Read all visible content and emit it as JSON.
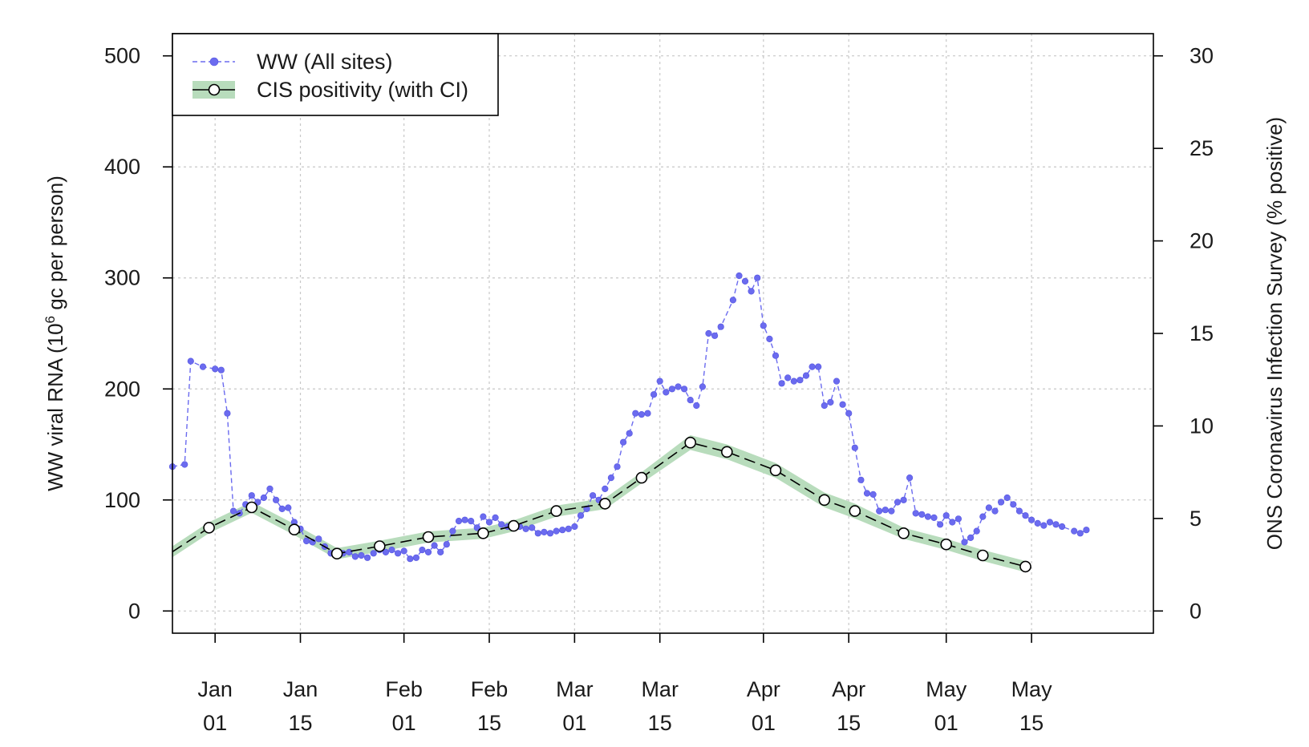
{
  "chart_data": {
    "type": "line",
    "x_axis": {
      "type": "date",
      "range": [
        "2020-12-25",
        "2021-06-04"
      ],
      "ticks": [
        {
          "date": "2021-01-01",
          "month": "Jan",
          "day": "01"
        },
        {
          "date": "2021-01-15",
          "month": "Jan",
          "day": "15"
        },
        {
          "date": "2021-02-01",
          "month": "Feb",
          "day": "01"
        },
        {
          "date": "2021-02-15",
          "month": "Feb",
          "day": "15"
        },
        {
          "date": "2021-03-01",
          "month": "Mar",
          "day": "01"
        },
        {
          "date": "2021-03-15",
          "month": "Mar",
          "day": "15"
        },
        {
          "date": "2021-04-01",
          "month": "Apr",
          "day": "01"
        },
        {
          "date": "2021-04-15",
          "month": "Apr",
          "day": "15"
        },
        {
          "date": "2021-05-01",
          "month": "May",
          "day": "01"
        },
        {
          "date": "2021-05-15",
          "month": "May",
          "day": "15"
        }
      ]
    },
    "y_left": {
      "label_main": "WW viral RNA (10",
      "label_sup": "6",
      "label_tail": " gc per person)",
      "range": [
        -20,
        520
      ],
      "ticks": [
        "0",
        "100",
        "200",
        "300",
        "400",
        "500"
      ]
    },
    "y_right": {
      "label": "ONS Coronavirus Infection Survey (% positive)",
      "range": [
        -1.2,
        31.2
      ],
      "ticks": [
        "0",
        "5",
        "10",
        "15",
        "20",
        "25",
        "30"
      ]
    },
    "grid": true,
    "legend": {
      "placement": "top-left",
      "entries": [
        "WW (All sites)",
        "CIS positivity (with CI)"
      ]
    },
    "colors": {
      "ww": "#6b6bef",
      "cis_line": "#000000",
      "cis_band": "#b8dcbc",
      "grid": "#c8c8c8"
    },
    "series": [
      {
        "name": "WW (All sites)",
        "axis": "left",
        "style": "dashed-line-points",
        "points": [
          [
            "2020-12-25",
            130
          ],
          [
            "2020-12-27",
            132
          ],
          [
            "2020-12-28",
            225
          ],
          [
            "2020-12-30",
            220
          ],
          [
            "2021-01-01",
            218
          ],
          [
            "2021-01-02",
            217
          ],
          [
            "2021-01-03",
            178
          ],
          [
            "2021-01-04",
            90
          ],
          [
            "2021-01-05",
            88
          ],
          [
            "2021-01-06",
            96
          ],
          [
            "2021-01-07",
            104
          ],
          [
            "2021-01-08",
            98
          ],
          [
            "2021-01-09",
            102
          ],
          [
            "2021-01-10",
            110
          ],
          [
            "2021-01-11",
            100
          ],
          [
            "2021-01-12",
            92
          ],
          [
            "2021-01-13",
            93
          ],
          [
            "2021-01-14",
            80
          ],
          [
            "2021-01-15",
            74
          ],
          [
            "2021-01-16",
            63
          ],
          [
            "2021-01-17",
            62
          ],
          [
            "2021-01-18",
            65
          ],
          [
            "2021-01-19",
            58
          ],
          [
            "2021-01-20",
            52
          ],
          [
            "2021-01-21",
            50
          ],
          [
            "2021-01-22",
            52
          ],
          [
            "2021-01-23",
            53
          ],
          [
            "2021-01-24",
            49
          ],
          [
            "2021-01-25",
            50
          ],
          [
            "2021-01-26",
            48
          ],
          [
            "2021-01-27",
            52
          ],
          [
            "2021-01-28",
            55
          ],
          [
            "2021-01-29",
            53
          ],
          [
            "2021-01-30",
            55
          ],
          [
            "2021-01-31",
            52
          ],
          [
            "2021-02-01",
            54
          ],
          [
            "2021-02-02",
            47
          ],
          [
            "2021-02-03",
            48
          ],
          [
            "2021-02-04",
            55
          ],
          [
            "2021-02-05",
            53
          ],
          [
            "2021-02-06",
            59
          ],
          [
            "2021-02-07",
            53
          ],
          [
            "2021-02-08",
            60
          ],
          [
            "2021-02-09",
            72
          ],
          [
            "2021-02-10",
            81
          ],
          [
            "2021-02-11",
            82
          ],
          [
            "2021-02-12",
            81
          ],
          [
            "2021-02-13",
            75
          ],
          [
            "2021-02-14",
            85
          ],
          [
            "2021-02-15",
            80
          ],
          [
            "2021-02-16",
            84
          ],
          [
            "2021-02-17",
            78
          ],
          [
            "2021-02-18",
            76
          ],
          [
            "2021-02-19",
            77
          ],
          [
            "2021-02-20",
            76
          ],
          [
            "2021-02-21",
            74
          ],
          [
            "2021-02-22",
            75
          ],
          [
            "2021-02-23",
            70
          ],
          [
            "2021-02-24",
            71
          ],
          [
            "2021-02-25",
            70
          ],
          [
            "2021-02-26",
            72
          ],
          [
            "2021-02-27",
            73
          ],
          [
            "2021-02-28",
            74
          ],
          [
            "2021-03-01",
            76
          ],
          [
            "2021-03-02",
            86
          ],
          [
            "2021-03-03",
            92
          ],
          [
            "2021-03-04",
            104
          ],
          [
            "2021-03-05",
            100
          ],
          [
            "2021-03-06",
            110
          ],
          [
            "2021-03-07",
            120
          ],
          [
            "2021-03-08",
            130
          ],
          [
            "2021-03-09",
            152
          ],
          [
            "2021-03-10",
            160
          ],
          [
            "2021-03-11",
            178
          ],
          [
            "2021-03-12",
            177
          ],
          [
            "2021-03-13",
            178
          ],
          [
            "2021-03-14",
            195
          ],
          [
            "2021-03-15",
            207
          ],
          [
            "2021-03-16",
            197
          ],
          [
            "2021-03-17",
            200
          ],
          [
            "2021-03-18",
            202
          ],
          [
            "2021-03-19",
            200
          ],
          [
            "2021-03-20",
            190
          ],
          [
            "2021-03-21",
            185
          ],
          [
            "2021-03-22",
            202
          ],
          [
            "2021-03-23",
            250
          ],
          [
            "2021-03-24",
            248
          ],
          [
            "2021-03-25",
            256
          ],
          [
            "2021-03-27",
            280
          ],
          [
            "2021-03-28",
            302
          ],
          [
            "2021-03-29",
            297
          ],
          [
            "2021-03-30",
            288
          ],
          [
            "2021-03-31",
            300
          ],
          [
            "2021-04-01",
            257
          ],
          [
            "2021-04-02",
            245
          ],
          [
            "2021-04-03",
            230
          ],
          [
            "2021-04-04",
            205
          ],
          [
            "2021-04-05",
            210
          ],
          [
            "2021-04-06",
            207
          ],
          [
            "2021-04-07",
            208
          ],
          [
            "2021-04-08",
            212
          ],
          [
            "2021-04-09",
            220
          ],
          [
            "2021-04-10",
            220
          ],
          [
            "2021-04-11",
            185
          ],
          [
            "2021-04-12",
            188
          ],
          [
            "2021-04-13",
            207
          ],
          [
            "2021-04-14",
            186
          ],
          [
            "2021-04-15",
            178
          ],
          [
            "2021-04-16",
            147
          ],
          [
            "2021-04-17",
            118
          ],
          [
            "2021-04-18",
            106
          ],
          [
            "2021-04-19",
            105
          ],
          [
            "2021-04-20",
            90
          ],
          [
            "2021-04-21",
            91
          ],
          [
            "2021-04-22",
            90
          ],
          [
            "2021-04-23",
            98
          ],
          [
            "2021-04-24",
            100
          ],
          [
            "2021-04-25",
            120
          ],
          [
            "2021-04-26",
            88
          ],
          [
            "2021-04-27",
            87
          ],
          [
            "2021-04-28",
            85
          ],
          [
            "2021-04-29",
            84
          ],
          [
            "2021-04-30",
            78
          ],
          [
            "2021-05-01",
            86
          ],
          [
            "2021-05-02",
            80
          ],
          [
            "2021-05-03",
            83
          ],
          [
            "2021-05-04",
            62
          ],
          [
            "2021-05-05",
            66
          ],
          [
            "2021-05-06",
            72
          ],
          [
            "2021-05-07",
            85
          ],
          [
            "2021-05-08",
            93
          ],
          [
            "2021-05-09",
            90
          ],
          [
            "2021-05-10",
            98
          ],
          [
            "2021-05-11",
            102
          ],
          [
            "2021-05-12",
            96
          ],
          [
            "2021-05-13",
            90
          ],
          [
            "2021-05-14",
            86
          ],
          [
            "2021-05-15",
            82
          ],
          [
            "2021-05-16",
            79
          ],
          [
            "2021-05-17",
            77
          ],
          [
            "2021-05-18",
            80
          ],
          [
            "2021-05-19",
            78
          ],
          [
            "2021-05-20",
            76
          ],
          [
            "2021-05-22",
            72
          ],
          [
            "2021-05-23",
            70
          ],
          [
            "2021-05-24",
            73
          ]
        ]
      },
      {
        "name": "CIS positivity (with CI)",
        "axis": "right",
        "style": "dashed-line-open-circles-with-band",
        "points": [
          {
            "date": "2020-12-25",
            "value": 3.2,
            "lo": 2.9,
            "hi": 3.5,
            "marker": false
          },
          {
            "date": "2020-12-31",
            "value": 4.5,
            "lo": 4.2,
            "hi": 4.8,
            "marker": true
          },
          {
            "date": "2021-01-07",
            "value": 5.6,
            "lo": 5.3,
            "hi": 5.9,
            "marker": true
          },
          {
            "date": "2021-01-14",
            "value": 4.4,
            "lo": 4.1,
            "hi": 4.7,
            "marker": true
          },
          {
            "date": "2021-01-21",
            "value": 3.1,
            "lo": 2.8,
            "hi": 3.4,
            "marker": true
          },
          {
            "date": "2021-01-28",
            "value": 3.5,
            "lo": 3.2,
            "hi": 3.8,
            "marker": true
          },
          {
            "date": "2021-02-05",
            "value": 4.0,
            "lo": 3.7,
            "hi": 4.3,
            "marker": true
          },
          {
            "date": "2021-02-14",
            "value": 4.2,
            "lo": 3.9,
            "hi": 4.5,
            "marker": true
          },
          {
            "date": "2021-02-19",
            "value": 4.6,
            "lo": 4.3,
            "hi": 4.9,
            "marker": true
          },
          {
            "date": "2021-02-26",
            "value": 5.4,
            "lo": 5.1,
            "hi": 5.7,
            "marker": true
          },
          {
            "date": "2021-03-06",
            "value": 5.8,
            "lo": 5.5,
            "hi": 6.1,
            "marker": true
          },
          {
            "date": "2021-03-12",
            "value": 7.2,
            "lo": 6.9,
            "hi": 7.5,
            "marker": true
          },
          {
            "date": "2021-03-20",
            "value": 9.1,
            "lo": 8.7,
            "hi": 9.5,
            "marker": true
          },
          {
            "date": "2021-03-26",
            "value": 8.6,
            "lo": 8.2,
            "hi": 9.0,
            "marker": true
          },
          {
            "date": "2021-04-03",
            "value": 7.6,
            "lo": 7.2,
            "hi": 8.0,
            "marker": true
          },
          {
            "date": "2021-04-11",
            "value": 6.0,
            "lo": 5.6,
            "hi": 6.4,
            "marker": true
          },
          {
            "date": "2021-04-16",
            "value": 5.4,
            "lo": 5.0,
            "hi": 5.8,
            "marker": true
          },
          {
            "date": "2021-04-24",
            "value": 4.2,
            "lo": 3.9,
            "hi": 4.5,
            "marker": true
          },
          {
            "date": "2021-05-01",
            "value": 3.6,
            "lo": 3.3,
            "hi": 3.9,
            "marker": true
          },
          {
            "date": "2021-05-07",
            "value": 3.0,
            "lo": 2.7,
            "hi": 3.3,
            "marker": true
          },
          {
            "date": "2021-05-14",
            "value": 2.4,
            "lo": 2.1,
            "hi": 2.7,
            "marker": true
          }
        ]
      }
    ]
  }
}
